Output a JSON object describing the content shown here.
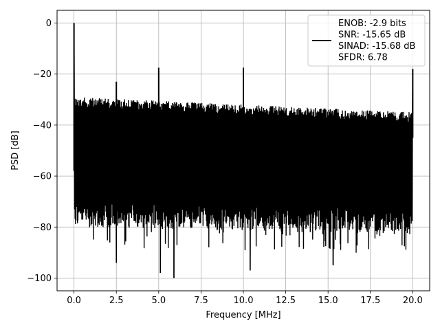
{
  "chart_data": {
    "type": "line",
    "title": "",
    "xlabel": "Frequency [MHz]",
    "ylabel": "PSD [dB]",
    "xlim": [
      -1.0,
      21.0
    ],
    "ylim": [
      -105,
      5
    ],
    "xticks": [
      0.0,
      2.5,
      5.0,
      7.5,
      10.0,
      12.5,
      15.0,
      17.5,
      20.0
    ],
    "xtick_labels": [
      "0.0",
      "2.5",
      "5.0",
      "7.5",
      "10.0",
      "12.5",
      "15.0",
      "17.5",
      "20.0"
    ],
    "yticks": [
      0,
      -20,
      -40,
      -60,
      -80,
      -100
    ],
    "ytick_labels": [
      "0",
      "−20",
      "−40",
      "−60",
      "−80",
      "−100"
    ],
    "grid": true,
    "legend_position": "upper right",
    "series": [
      {
        "color": "#000000",
        "description": "noise floor spans approximately -30 dB (top) to -75 dB (bottom) from 0 to 20 MHz, tapering to about -35 dB at 20 MHz",
        "peaks": [
          {
            "x": 0.0,
            "y": 0
          },
          {
            "x": 2.5,
            "y": -23
          },
          {
            "x": 5.0,
            "y": -17.5
          },
          {
            "x": 10.0,
            "y": -17.5
          },
          {
            "x": 20.0,
            "y": -18
          }
        ],
        "deep_nulls": [
          {
            "x": 2.5,
            "y": -94
          },
          {
            "x": 5.1,
            "y": -98
          },
          {
            "x": 5.9,
            "y": -100
          },
          {
            "x": 10.4,
            "y": -97
          },
          {
            "x": 15.3,
            "y": -95
          }
        ]
      }
    ],
    "legend": {
      "lines": [
        "ENOB: -2.9 bits",
        "SNR: -15.65 dB",
        "SINAD: -15.68 dB",
        "SFDR: 6.78"
      ]
    }
  }
}
